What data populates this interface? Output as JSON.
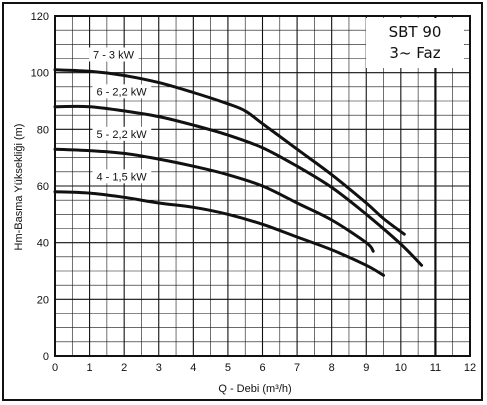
{
  "chart_data": {
    "type": "line",
    "title_lines": [
      "SBT 90",
      "3~ Faz"
    ],
    "xlabel": "Q - Debi (m³/h)",
    "ylabel": "Hm-Basma Yüksekliği (m)",
    "xlim": [
      0,
      12
    ],
    "ylim": [
      0,
      120
    ],
    "xticks": [
      0,
      1,
      2,
      3,
      4,
      5,
      6,
      7,
      8,
      9,
      10,
      11,
      12
    ],
    "yticks": [
      0,
      20,
      40,
      60,
      80,
      100,
      120
    ],
    "grid": true,
    "series": [
      {
        "name": "7 - 3 kW",
        "x": [
          0,
          1,
          2,
          3,
          4,
          5,
          5.5,
          6,
          7,
          8,
          9,
          9.5,
          10.1
        ],
        "y": [
          101,
          100.5,
          99,
          96.5,
          93,
          89,
          86.5,
          82,
          73,
          64,
          54,
          48.5,
          43
        ]
      },
      {
        "name": "6 - 2,2 kW",
        "x": [
          0,
          1,
          2,
          3,
          4,
          5,
          6,
          7,
          8,
          9,
          10,
          10.6
        ],
        "y": [
          88,
          88,
          86.5,
          84.5,
          81.5,
          78,
          73.5,
          67,
          59.5,
          50,
          39.5,
          32
        ]
      },
      {
        "name": "5 - 2,2 kW",
        "x": [
          0,
          1,
          2,
          3,
          4,
          5,
          6,
          7,
          8,
          9,
          9.2
        ],
        "y": [
          73,
          72.5,
          71.5,
          69.5,
          67,
          64,
          60,
          54,
          48,
          40,
          37
        ]
      },
      {
        "name": "4 - 1,5 kW",
        "x": [
          0,
          1,
          2,
          3,
          4,
          5,
          6,
          7,
          8,
          9,
          9.5
        ],
        "y": [
          58,
          57.5,
          56,
          54,
          52.5,
          50,
          46.5,
          42,
          37.5,
          32,
          28.5
        ]
      }
    ],
    "vertical_marker_x": 11
  }
}
